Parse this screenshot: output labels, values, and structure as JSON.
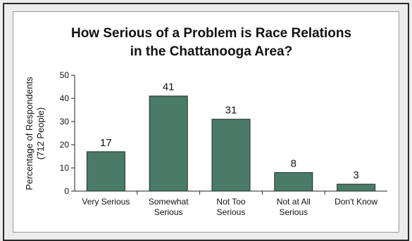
{
  "chart_data": {
    "type": "bar",
    "title_lines": [
      "How Serious of a Problem is Race Relations",
      "in the Chattanooga Area?"
    ],
    "ylabel_lines": [
      "Percentage of Respondents",
      "(712 People)"
    ],
    "xlabel": "",
    "categories": [
      [
        "Very Serious"
      ],
      [
        "Somewhat",
        "Serious"
      ],
      [
        "Not Too",
        "Serious"
      ],
      [
        "Not at All",
        "Serious"
      ],
      [
        "Don't Know"
      ]
    ],
    "values": [
      17,
      41,
      31,
      8,
      3
    ],
    "ylim": [
      0,
      50
    ],
    "yticks": [
      0,
      10,
      20,
      30,
      40,
      50
    ],
    "grid": false,
    "legend": "none",
    "bar_color": "#4a7a68"
  }
}
